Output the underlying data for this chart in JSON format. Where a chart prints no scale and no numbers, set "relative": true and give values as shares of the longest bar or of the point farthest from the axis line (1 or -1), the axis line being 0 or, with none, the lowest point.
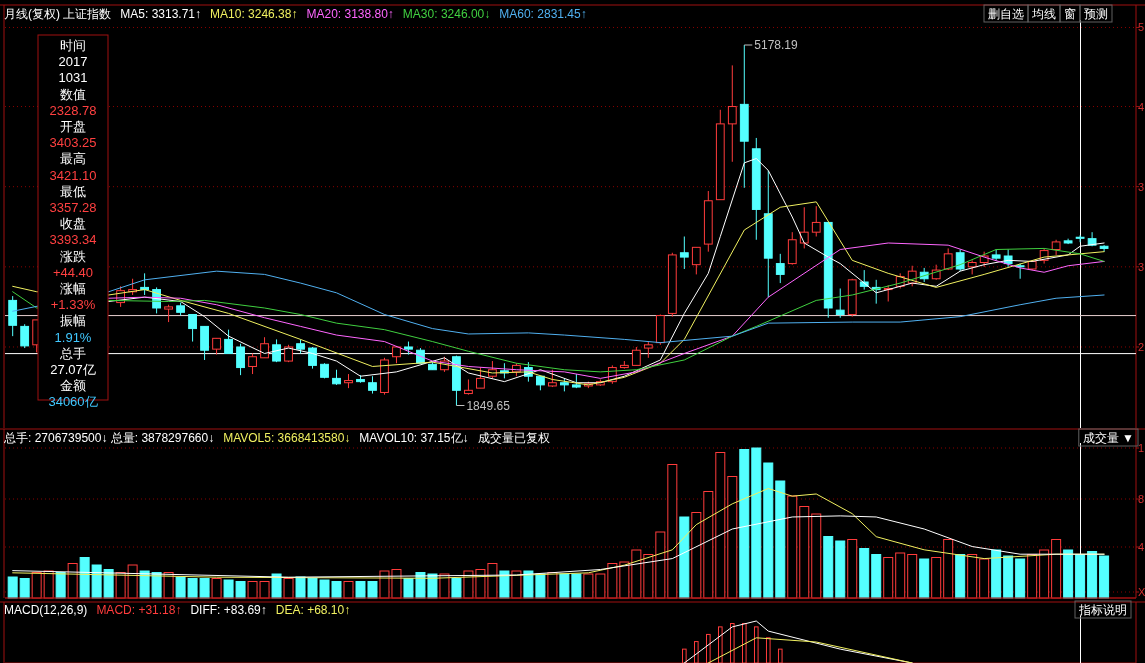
{
  "chart_data": [
    {
      "type": "candlestick",
      "title": "月线(复权)  上证指数",
      "categories": [
        null,
        null,
        null,
        null,
        null,
        null,
        null,
        null,
        null,
        null,
        null,
        null,
        null,
        null,
        null,
        null,
        null,
        null,
        null,
        null,
        null,
        null,
        null,
        null,
        null,
        null,
        null,
        null,
        null,
        null,
        null,
        null,
        null,
        null,
        null,
        null,
        null,
        null,
        null,
        null,
        null,
        null,
        null,
        null,
        null,
        null,
        null,
        null,
        null,
        null,
        null,
        null,
        null,
        null,
        null,
        null,
        null,
        null,
        null,
        null,
        null,
        null,
        null,
        null,
        null,
        null,
        null,
        null,
        null,
        null,
        null,
        null,
        null,
        null,
        null,
        null,
        null,
        null,
        null,
        null,
        null,
        null,
        null,
        null,
        null,
        null,
        null,
        null,
        null,
        null,
        null,
        null
      ],
      "ohlc": [
        [
          2820,
          2860,
          2490,
          2590
        ],
        [
          2580,
          2600,
          2380,
          2400
        ],
        [
          2410,
          2640,
          2340,
          2640
        ],
        null,
        null,
        null,
        null,
        null,
        null,
        [
          2800,
          2950,
          2760,
          2910
        ],
        [
          2900,
          3020,
          2870,
          2920
        ],
        [
          2940,
          3070,
          2870,
          2920
        ],
        [
          2920,
          2940,
          2700,
          2750
        ],
        [
          2740,
          2780,
          2620,
          2760
        ],
        [
          2770,
          2800,
          2680,
          2710
        ],
        [
          2690,
          2690,
          2440,
          2560
        ],
        [
          2580,
          2580,
          2270,
          2360
        ],
        [
          2370,
          2470,
          2320,
          2470
        ],
        [
          2460,
          2550,
          2330,
          2330
        ],
        [
          2390,
          2420,
          2130,
          2200
        ],
        [
          2210,
          2330,
          2140,
          2300
        ],
        [
          2290,
          2480,
          2290,
          2420
        ],
        [
          2410,
          2460,
          2250,
          2260
        ],
        [
          2260,
          2410,
          2250,
          2390
        ],
        [
          2420,
          2460,
          2330,
          2370
        ],
        [
          2380,
          2390,
          2190,
          2220
        ],
        [
          2230,
          2240,
          2100,
          2110
        ],
        [
          2100,
          2180,
          2040,
          2050
        ],
        [
          2060,
          2140,
          2010,
          2080
        ],
        [
          2090,
          2130,
          2060,
          2070
        ],
        [
          2060,
          2120,
          1960,
          1990
        ],
        [
          1970,
          2290,
          1950,
          2270
        ],
        [
          2300,
          2400,
          2240,
          2390
        ],
        [
          2390,
          2440,
          2320,
          2370
        ],
        [
          2360,
          2380,
          2240,
          2240
        ],
        [
          2230,
          2250,
          2180,
          2180
        ],
        [
          2180,
          2300,
          2160,
          2260
        ],
        [
          2300,
          2310,
          1849.65,
          1990
        ],
        [
          1960,
          2090,
          1950,
          1990
        ],
        [
          2010,
          2200,
          2010,
          2100
        ],
        [
          2120,
          2260,
          2100,
          2180
        ],
        [
          2170,
          2240,
          2100,
          2150
        ],
        [
          2160,
          2240,
          2120,
          2220
        ],
        [
          2200,
          2250,
          2070,
          2120
        ],
        [
          2120,
          2120,
          1990,
          2040
        ],
        [
          2030,
          2180,
          2020,
          2060
        ],
        [
          2060,
          2100,
          1980,
          2040
        ],
        [
          2040,
          2140,
          2010,
          2020
        ],
        [
          2030,
          2070,
          2010,
          2050
        ],
        [
          2040,
          2090,
          2030,
          2070
        ],
        [
          2070,
          2220,
          2050,
          2200
        ],
        [
          2200,
          2260,
          2190,
          2220
        ],
        [
          2220,
          2390,
          2220,
          2360
        ],
        [
          2380,
          2440,
          2290,
          2410
        ],
        [
          2430,
          2690,
          2410,
          2680
        ],
        [
          2700,
          3260,
          2670,
          3240
        ],
        [
          3260,
          3410,
          3110,
          3220
        ],
        [
          3150,
          3310,
          3060,
          3310
        ],
        [
          3340,
          3830,
          3270,
          3740
        ],
        [
          3750,
          4580,
          3750,
          4450
        ],
        [
          4450,
          4990,
          4100,
          4610
        ],
        [
          4630,
          5178.19,
          3860,
          4290
        ],
        [
          4220,
          4320,
          3380,
          3660
        ],
        [
          3620,
          4020,
          2850,
          3210
        ],
        [
          3160,
          3250,
          2980,
          3060
        ],
        [
          3160,
          3450,
          3150,
          3380
        ],
        [
          3350,
          3680,
          3300,
          3450
        ],
        [
          3450,
          3690,
          3410,
          3540
        ],
        [
          3540,
          3540,
          2660,
          2750
        ],
        [
          2730,
          2930,
          2660,
          2690
        ],
        [
          2690,
          3020,
          2670,
          3010
        ],
        [
          2990,
          3100,
          2920,
          2950
        ],
        [
          2940,
          3010,
          2790,
          2920
        ],
        [
          2920,
          2960,
          2810,
          2930
        ],
        [
          2950,
          3070,
          2930,
          3040
        ],
        [
          2980,
          3140,
          2950,
          3090
        ],
        [
          3080,
          3120,
          2990,
          3020
        ],
        [
          3020,
          3150,
          3010,
          3100
        ],
        [
          3110,
          3300,
          3100,
          3250
        ],
        [
          3260,
          3290,
          3090,
          3110
        ],
        [
          3130,
          3190,
          3060,
          3170
        ],
        [
          3170,
          3270,
          3130,
          3230
        ],
        [
          3240,
          3290,
          3190,
          3210
        ],
        [
          3230,
          3290,
          3130,
          3160
        ],
        [
          3140,
          3160,
          3020,
          3130
        ],
        [
          3110,
          3190,
          3100,
          3180
        ],
        [
          3190,
          3300,
          3160,
          3280
        ],
        [
          3290,
          3380,
          3240,
          3360
        ],
        [
          3370,
          3390,
          3340,
          3350
        ],
        [
          3403.25,
          3421.1,
          3357.28,
          3393.34
        ],
        [
          3390,
          3450,
          3320,
          3330
        ],
        [
          3320,
          3330,
          3270,
          3300
        ]
      ],
      "colors": [
        "#54ffff",
        "#54ffff",
        "#ff3c3c",
        null,
        null,
        null,
        null,
        null,
        null,
        "#ff3c3c",
        "#ff3c3c",
        "#54ffff",
        "#54ffff",
        "#ff3c3c",
        "#54ffff",
        "#54ffff",
        "#54ffff",
        "#ff3c3c",
        "#54ffff",
        "#54ffff",
        "#ff3c3c",
        "#ff3c3c",
        "#54ffff",
        "#ff3c3c",
        "#54ffff",
        "#54ffff",
        "#54ffff",
        "#54ffff",
        "#ff3c3c",
        "#54ffff",
        "#54ffff",
        "#ff3c3c",
        "#ff3c3c",
        "#54ffff",
        "#54ffff",
        "#54ffff",
        "#ff3c3c",
        "#54ffff",
        "#ff3c3c",
        "#ff3c3c",
        "#ff3c3c",
        "#54ffff",
        "#ff3c3c",
        "#54ffff",
        "#54ffff",
        "#ff3c3c",
        "#54ffff",
        "#54ffff",
        "#ff3c3c",
        "#ff3c3c",
        "#ff3c3c",
        "#ff3c3c",
        "#ff3c3c",
        "#ff3c3c",
        "#ff3c3c",
        "#ff3c3c",
        "#54ffff",
        "#ff3c3c",
        "#ff3c3c",
        "#ff3c3c",
        "#ff3c3c",
        "#54ffff",
        "#54ffff",
        "#54ffff",
        "#54ffff",
        "#ff3c3c",
        "#ff3c3c",
        "#ff3c3c",
        "#54ffff",
        "#54ffff",
        "#ff3c3c",
        "#54ffff",
        "#54ffff",
        "#ff3c3c",
        "#ff3c3c",
        "#ff3c3c",
        "#54ffff",
        "#ff3c3c",
        "#ff3c3c",
        "#54ffff",
        "#ff3c3c",
        "#ff3c3c",
        "#54ffff",
        "#54ffff",
        "#54ffff",
        "#ff3c3c",
        "#ff3c3c",
        "#ff3c3c",
        "#54ffff",
        "#54ffff",
        "#54ffff",
        "#54ffff"
      ],
      "series": [
        {
          "type": "line",
          "name": "MA5: 3313.71↑",
          "color": "#ffffff",
          "values": [
            null,
            null,
            null,
            null,
            null,
            null,
            null,
            null,
            2810,
            null,
            null,
            2850,
            null,
            null,
            2810,
            null,
            2670,
            null,
            2490,
            null,
            null,
            2330,
            null,
            2380,
            null,
            2330,
            null,
            2260,
            null,
            2120,
            null,
            null,
            2160,
            null,
            null,
            null,
            2290,
            null,
            2150,
            null,
            null,
            2070,
            null,
            null,
            2180,
            null,
            null,
            2060,
            null,
            2060,
            null,
            2120,
            null,
            null,
            2270,
            null,
            2700,
            null,
            3070,
            3410,
            null,
            4090,
            4130,
            4020,
            null,
            3590,
            3350,
            null,
            3220,
            3160,
            null,
            null,
            2890,
            2920,
            null,
            2980,
            null,
            2950,
            null,
            3090,
            null,
            3150,
            null,
            3190,
            null,
            3180,
            null,
            null,
            3240,
            3320,
            null,
            3350
          ]
        },
        {
          "type": "line",
          "name": "MA10: 3246.38↑",
          "color": "#f0f060",
          "values": [
            2950,
            null,
            2900,
            null,
            null,
            null,
            null,
            null,
            2870,
            null,
            null,
            2920,
            null,
            null,
            2820,
            null,
            null,
            null,
            2700,
            null,
            null,
            null,
            null,
            null,
            2460,
            null,
            null,
            null,
            null,
            null,
            2210,
            null,
            null,
            null,
            null,
            2250,
            null,
            2210,
            null,
            null,
            2150,
            null,
            null,
            2160,
            null,
            2090,
            null,
            null,
            2040,
            null,
            null,
            2110,
            null,
            null,
            2240,
            null,
            2460,
            null,
            null,
            null,
            null,
            3470,
            null,
            null,
            3680,
            null,
            null,
            3730,
            null,
            null,
            3190,
            null,
            null,
            3070,
            null,
            null,
            null,
            2940,
            null,
            null,
            null,
            3060,
            null,
            null,
            null,
            null,
            3220,
            null,
            null,
            null,
            null,
            3270
          ]
        },
        {
          "type": "line",
          "name": "MA20: 3138.80↑",
          "color": "#ff66ff",
          "values": [
            null,
            null,
            null,
            null,
            null,
            null,
            null,
            null,
            2840,
            null,
            null,
            2850,
            null,
            null,
            2840,
            null,
            null,
            2780,
            null,
            null,
            null,
            2660,
            null,
            null,
            2580,
            null,
            null,
            2500,
            null,
            null,
            null,
            2440,
            null,
            null,
            null,
            2260,
            null,
            null,
            2210,
            null,
            null,
            null,
            2180,
            null,
            null,
            null,
            2160,
            null,
            null,
            2100,
            null,
            null,
            2160,
            null,
            null,
            null,
            2330,
            null,
            null,
            null,
            2490,
            null,
            null,
            2850,
            null,
            null,
            null,
            null,
            null,
            3290,
            null,
            null,
            null,
            3350,
            null,
            null,
            null,
            null,
            3330,
            null,
            null,
            3220,
            null,
            null,
            3120,
            null,
            3080,
            null,
            3140,
            null,
            null,
            3180
          ]
        },
        {
          "type": "line",
          "name": "MA30: 3246.00↓",
          "color": "#40d040",
          "values": [
            2900,
            null,
            2750,
            null,
            null,
            null,
            null,
            null,
            2820,
            null,
            null,
            null,
            null,
            2810,
            null,
            null,
            2820,
            null,
            null,
            null,
            null,
            2750,
            null,
            null,
            2690,
            null,
            null,
            2610,
            null,
            null,
            null,
            2550,
            null,
            null,
            null,
            2440,
            null,
            null,
            2350,
            null,
            null,
            null,
            2240,
            null,
            null,
            null,
            2180,
            null,
            null,
            2160,
            null,
            null,
            2180,
            null,
            null,
            null,
            2270,
            null,
            null,
            null,
            2490,
            null,
            2580,
            null,
            null,
            null,
            null,
            2820,
            null,
            null,
            2870,
            null,
            null,
            null,
            2980,
            null,
            null,
            null,
            null,
            3150,
            null,
            null,
            3290,
            null,
            null,
            null,
            3300,
            null,
            null,
            3250,
            null,
            3180
          ]
        },
        {
          "type": "line",
          "name": "MA60: 2831.45↑",
          "color": "#50b0f0",
          "values": [
            2720,
            null,
            null,
            null,
            null,
            null,
            null,
            null,
            2900,
            null,
            null,
            3010,
            null,
            null,
            null,
            null,
            null,
            3090,
            null,
            null,
            null,
            3060,
            null,
            null,
            2980,
            null,
            null,
            2890,
            null,
            null,
            null,
            2690,
            null,
            null,
            null,
            2560,
            null,
            null,
            2510,
            null,
            null,
            null,
            null,
            2520,
            null,
            null,
            2500,
            null,
            null,
            null,
            null,
            2460,
            null,
            null,
            2430,
            null,
            null,
            null,
            null,
            null,
            2490,
            null,
            null,
            2610,
            null,
            null,
            null,
            null,
            null,
            null,
            2620,
            null,
            null,
            null,
            2620,
            null,
            null,
            null,
            null,
            2670,
            null,
            null,
            null,
            null,
            2780,
            null,
            null,
            2840,
            null,
            null,
            null,
            2870
          ]
        }
      ],
      "ref_lines": [
        {
          "axis": "y",
          "value": 5340,
          "color": "#8a0000",
          "line_style": "dotted"
        },
        {
          "axis": "y",
          "value": 4610,
          "color": "#8a0000",
          "line_style": "dotted"
        },
        {
          "axis": "y",
          "value": 3870,
          "color": "#8a0000",
          "line_style": "dotted"
        },
        {
          "axis": "y",
          "value": 3130,
          "color": "#8a0000",
          "line_style": "dotted"
        },
        {
          "axis": "y",
          "value": 2390,
          "color": "#8a0000",
          "line_style": "dotted"
        },
        {
          "axis": "y",
          "value": 2680,
          "color": "#e8d0d0"
        },
        {
          "axis": "y",
          "value": 2328.78,
          "color": "#ffffff"
        }
      ],
      "annotations": [
        "5178.19",
        "1849.65",
        "5",
        "4",
        "3",
        "3",
        "2",
        "删自选",
        "均线",
        "窗",
        "预测"
      ]
    },
    {
      "type": "other",
      "annotations": [
        "时间",
        "2017",
        "1031",
        "数值",
        "2328.78",
        "开盘",
        "3403.25",
        "最高",
        "3421.10",
        "最低",
        "3357.28",
        "收盘",
        "3393.34",
        "涨跌",
        "+44.40",
        "涨幅",
        "+1.33%",
        "振幅",
        "1.91%",
        "总手",
        "27.07亿",
        "金额",
        "34060亿"
      ],
      "colors": [
        "#ffffff",
        "#ffffff",
        "#ffffff",
        "#ffffff",
        "#ff4040",
        "#ffffff",
        "#ff4040",
        "#ffffff",
        "#ff4040",
        "#ffffff",
        "#ff4040",
        "#ffffff",
        "#ff4040",
        "#ffffff",
        "#ff4040",
        "#ffffff",
        "#ff4040",
        "#ffffff",
        "#40c8ff",
        "#ffffff",
        "#ffffff",
        "#ffffff",
        "#40c8ff"
      ]
    },
    {
      "type": "bar",
      "relative": true,
      "subtitle": "总手: 2706739500↓  总量: 3878297660↓",
      "categories": [
        null,
        null,
        null,
        null,
        null,
        null,
        null,
        null,
        null,
        null,
        null,
        null,
        null,
        null,
        null,
        null,
        null,
        null,
        null,
        null,
        null,
        null,
        null,
        null,
        null,
        null,
        null,
        null,
        null,
        null,
        null,
        null,
        null,
        null,
        null,
        null,
        null,
        null,
        null,
        null,
        null,
        null,
        null,
        null,
        null,
        null,
        null,
        null,
        null,
        null,
        null,
        null,
        null,
        null,
        null,
        null,
        null,
        null,
        null,
        null,
        null,
        null,
        null,
        null,
        null,
        null,
        null,
        null,
        null,
        null,
        null,
        null,
        null,
        null,
        null,
        null,
        null,
        null,
        null,
        null,
        null,
        null,
        null,
        null,
        null,
        null,
        null,
        null,
        null,
        null,
        null,
        null
      ],
      "values": [
        0.14,
        0.13,
        0.17,
        0.18,
        0.17,
        0.23,
        0.27,
        0.22,
        0.19,
        0.17,
        0.22,
        0.18,
        0.17,
        0.17,
        0.14,
        0.13,
        0.13,
        0.13,
        0.12,
        0.11,
        0.11,
        0.11,
        0.16,
        0.13,
        0.14,
        0.13,
        0.12,
        0.11,
        0.11,
        0.11,
        0.11,
        0.18,
        0.19,
        0.13,
        0.17,
        0.16,
        0.16,
        0.13,
        0.18,
        0.19,
        0.23,
        0.18,
        0.18,
        0.18,
        0.16,
        0.17,
        0.16,
        0.16,
        0.16,
        0.16,
        0.23,
        0.24,
        0.32,
        0.29,
        0.44,
        0.89,
        0.54,
        0.57,
        0.71,
        0.97,
        0.81,
        0.99,
        1,
        0.9,
        0.78,
        0.68,
        0.61,
        0.56,
        0.41,
        0.38,
        0.39,
        0.33,
        0.29,
        0.27,
        0.3,
        0.29,
        0.26,
        0.27,
        0.39,
        0.29,
        0.29,
        0.26,
        0.32,
        0.28,
        0.26,
        0.29,
        0.32,
        0.39,
        0.32,
        0.29,
        0.31,
        0.28
      ],
      "colors": [
        "#54ffff",
        "#54ffff",
        "#ff3c3c",
        "#ff3c3c",
        "#54ffff",
        "#ff3c3c",
        "#54ffff",
        "#54ffff",
        "#54ffff",
        "#ff3c3c",
        "#ff3c3c",
        "#54ffff",
        "#54ffff",
        "#ff3c3c",
        "#54ffff",
        "#54ffff",
        "#54ffff",
        "#ff3c3c",
        "#54ffff",
        "#54ffff",
        "#ff3c3c",
        "#ff3c3c",
        "#54ffff",
        "#ff3c3c",
        "#54ffff",
        "#54ffff",
        "#54ffff",
        "#54ffff",
        "#ff3c3c",
        "#54ffff",
        "#54ffff",
        "#ff3c3c",
        "#ff3c3c",
        "#54ffff",
        "#54ffff",
        "#54ffff",
        "#ff3c3c",
        "#54ffff",
        "#ff3c3c",
        "#ff3c3c",
        "#ff3c3c",
        "#54ffff",
        "#ff3c3c",
        "#54ffff",
        "#54ffff",
        "#ff3c3c",
        "#54ffff",
        "#54ffff",
        "#ff3c3c",
        "#ff3c3c",
        "#ff3c3c",
        "#ff3c3c",
        "#ff3c3c",
        "#ff3c3c",
        "#ff3c3c",
        "#ff3c3c",
        "#54ffff",
        "#ff3c3c",
        "#ff3c3c",
        "#ff3c3c",
        "#ff3c3c",
        "#54ffff",
        "#54ffff",
        "#54ffff",
        "#54ffff",
        "#ff3c3c",
        "#ff3c3c",
        "#ff3c3c",
        "#54ffff",
        "#54ffff",
        "#ff3c3c",
        "#54ffff",
        "#54ffff",
        "#ff3c3c",
        "#ff3c3c",
        "#ff3c3c",
        "#54ffff",
        "#ff3c3c",
        "#ff3c3c",
        "#54ffff",
        "#ff3c3c",
        "#ff3c3c",
        "#54ffff",
        "#54ffff",
        "#54ffff",
        "#ff3c3c",
        "#ff3c3c",
        "#ff3c3c",
        "#54ffff",
        "#54ffff",
        "#54ffff",
        "#54ffff"
      ],
      "ref_lines": [
        {
          "axis": "y",
          "value": 1.0,
          "color": "#8a0000",
          "line_style": "dotted"
        },
        {
          "axis": "y",
          "value": 0.66,
          "color": "#8a0000",
          "line_style": "dotted"
        },
        {
          "axis": "y",
          "value": 0.34,
          "color": "#8a0000",
          "line_style": "dotted"
        },
        {
          "axis": "y",
          "value": 0.04,
          "color": "#8a0000",
          "line_style": "dotted"
        }
      ],
      "annotations": [
        "1",
        "8",
        "4",
        "X",
        "成交量 ▼"
      ]
    },
    {
      "type": "line",
      "relative": true,
      "categories": [
        null,
        null,
        null,
        null,
        null,
        null,
        null,
        null,
        null,
        null,
        null,
        null,
        null,
        null,
        null,
        null,
        null,
        null,
        null,
        null,
        null,
        null,
        null,
        null,
        null,
        null,
        null,
        null,
        null,
        null,
        null,
        null,
        null,
        null,
        null,
        null,
        null,
        null,
        null,
        null,
        null,
        null,
        null,
        null,
        null,
        null,
        null,
        null,
        null,
        null,
        null,
        null,
        null,
        null,
        null,
        null,
        null,
        null,
        null,
        null,
        null,
        null,
        null,
        null,
        null,
        null,
        null,
        null,
        null,
        null,
        null,
        null,
        null,
        null,
        null,
        null,
        null,
        null,
        null,
        null,
        null,
        null,
        null,
        null,
        null,
        null,
        null,
        null,
        null,
        null,
        null,
        null
      ],
      "series": [
        {
          "name": "MAVOL5: 3668413580↓",
          "color": "#f0f060",
          "values": [
            0.23,
            null,
            null,
            null,
            null,
            null,
            null,
            null,
            null,
            null,
            null,
            null,
            null,
            null,
            null,
            null,
            null,
            0.19,
            null,
            null,
            null,
            null,
            null,
            null,
            null,
            null,
            null,
            null,
            null,
            null,
            null,
            null,
            null,
            null,
            null,
            0.18,
            null,
            null,
            null,
            null,
            null,
            null,
            null,
            null,
            null,
            null,
            null,
            null,
            0.23,
            null,
            null,
            0.3,
            null,
            null,
            null,
            0.44,
            null,
            0.67,
            null,
            null,
            0.86,
            null,
            null,
            1,
            null,
            0.93,
            null,
            0.95,
            null,
            null,
            0.77,
            null,
            0.56,
            null,
            null,
            null,
            0.44,
            null,
            null,
            null,
            null,
            0.36,
            null,
            null,
            null,
            null,
            null,
            0.4,
            null,
            null,
            null,
            0.4
          ]
        },
        {
          "name": "MAVOL10: 37.15亿↓",
          "color": "#ffffff",
          "values": [
            0.25,
            null,
            null,
            null,
            null,
            null,
            null,
            null,
            null,
            null,
            null,
            null,
            null,
            null,
            null,
            null,
            null,
            null,
            null,
            null,
            null,
            null,
            null,
            0.19,
            null,
            null,
            null,
            null,
            null,
            null,
            null,
            null,
            null,
            null,
            null,
            null,
            null,
            null,
            null,
            null,
            null,
            null,
            0.21,
            null,
            null,
            null,
            null,
            null,
            null,
            0.26,
            null,
            null,
            null,
            null,
            null,
            0.36,
            null,
            null,
            null,
            null,
            0.63,
            null,
            null,
            null,
            null,
            0.74,
            null,
            null,
            null,
            0.75,
            null,
            null,
            0.74,
            null,
            null,
            null,
            0.63,
            null,
            null,
            null,
            0.47,
            null,
            null,
            null,
            0.4,
            null,
            null,
            null,
            null,
            null,
            null,
            0.4
          ]
        }
      ],
      "annotations": [
        "成交量已复权"
      ]
    },
    {
      "type": "bar",
      "relative": true,
      "title": "MACD(12,26,9)",
      "categories": [
        null,
        null,
        null,
        null,
        null,
        null,
        null,
        null,
        null,
        null,
        null,
        null,
        null,
        null,
        null,
        null,
        null,
        null,
        null,
        null,
        null,
        null,
        null,
        null,
        null,
        null,
        null,
        null,
        null,
        null,
        null,
        null,
        null,
        null,
        null,
        null,
        null,
        null,
        null,
        null,
        null,
        null,
        null,
        null,
        null,
        null,
        null,
        null,
        null,
        null,
        null,
        null,
        null,
        null,
        null,
        null,
        null,
        null,
        null,
        null,
        null,
        null,
        null,
        null,
        null,
        null,
        null,
        null,
        null,
        null,
        null,
        null,
        null,
        null,
        null,
        null,
        null,
        null,
        null,
        null,
        null,
        null,
        null,
        null,
        null,
        null,
        null,
        null,
        null,
        null,
        null,
        null
      ],
      "series": [
        {
          "type": "bar",
          "name": "MACD: +31.18↑",
          "color": "#ff3c3c",
          "values": [
            null,
            null,
            null,
            null,
            null,
            null,
            null,
            null,
            null,
            null,
            null,
            null,
            null,
            null,
            null,
            null,
            null,
            null,
            null,
            null,
            null,
            null,
            null,
            null,
            null,
            null,
            null,
            null,
            null,
            null,
            null,
            null,
            null,
            null,
            null,
            null,
            null,
            null,
            null,
            null,
            null,
            null,
            null,
            null,
            null,
            null,
            null,
            null,
            null,
            null,
            null,
            null,
            null,
            null,
            null,
            null,
            0.33,
            0.51,
            0.68,
            0.86,
            0.94,
            0.94,
            0.86,
            0.6,
            0.33,
            null,
            null,
            null,
            null,
            null,
            null,
            null,
            null,
            null,
            null,
            null,
            null,
            null,
            null,
            null,
            null,
            null,
            null,
            null,
            null,
            null,
            null,
            null,
            null,
            null,
            null,
            null
          ]
        },
        {
          "type": "line",
          "name": "DIFF: +83.69↑",
          "color": "#ffffff",
          "values": [
            null,
            null,
            null,
            null,
            null,
            null,
            null,
            null,
            null,
            null,
            null,
            null,
            null,
            null,
            null,
            null,
            null,
            null,
            null,
            null,
            null,
            null,
            null,
            null,
            null,
            null,
            null,
            null,
            null,
            null,
            null,
            null,
            null,
            null,
            null,
            null,
            null,
            null,
            null,
            null,
            null,
            null,
            null,
            null,
            null,
            null,
            null,
            null,
            null,
            null,
            null,
            null,
            null,
            null,
            null,
            null,
            0,
            null,
            null,
            null,
            0.86,
            null,
            1,
            0.76,
            null,
            null,
            null,
            null,
            null,
            0.33,
            null,
            null,
            null,
            null,
            null,
            0,
            null,
            null,
            null,
            null,
            null,
            null,
            null,
            null,
            null,
            null,
            null,
            null,
            null,
            null,
            null,
            null
          ]
        },
        {
          "type": "line",
          "name": "DEA: +68.10↑",
          "color": "#f0f060",
          "values": [
            null,
            null,
            null,
            null,
            null,
            null,
            null,
            null,
            null,
            null,
            null,
            null,
            null,
            null,
            null,
            null,
            null,
            null,
            null,
            null,
            null,
            null,
            null,
            null,
            null,
            null,
            null,
            null,
            null,
            null,
            null,
            null,
            null,
            null,
            null,
            null,
            null,
            null,
            null,
            null,
            null,
            null,
            null,
            null,
            null,
            null,
            null,
            null,
            null,
            null,
            null,
            null,
            null,
            null,
            null,
            null,
            null,
            null,
            0,
            null,
            null,
            null,
            0.6,
            null,
            null,
            null,
            null,
            0.5,
            null,
            null,
            null,
            null,
            null,
            null,
            null,
            0,
            null,
            null,
            null,
            null,
            null,
            null,
            null,
            null,
            null,
            null,
            null,
            null,
            null,
            null,
            null,
            null
          ]
        }
      ],
      "annotations": [
        "指标说明"
      ]
    }
  ]
}
